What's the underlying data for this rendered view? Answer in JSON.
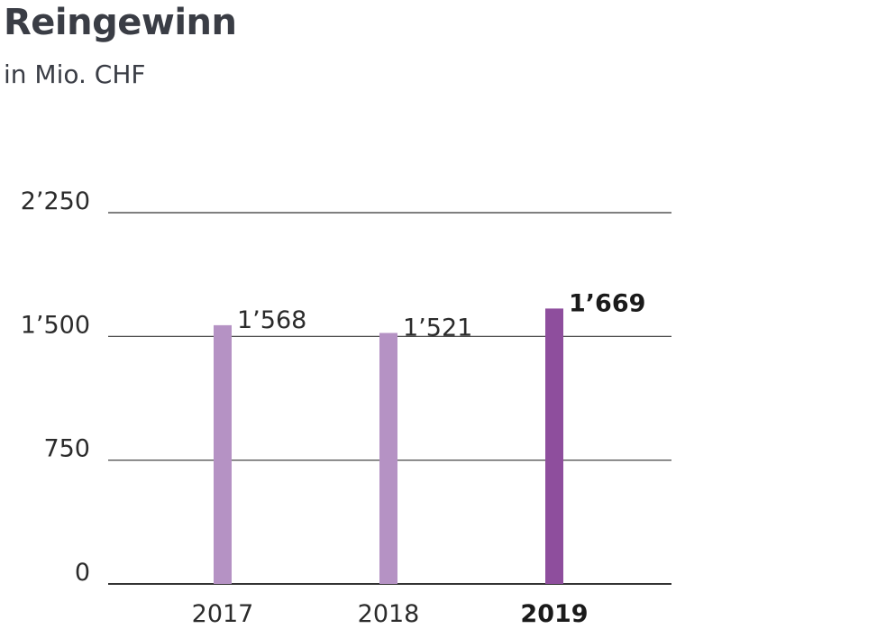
{
  "header": {
    "title": "Reingewinn",
    "subtitle": "in Mio. CHF"
  },
  "colors": {
    "bar_default": "#b592c4",
    "bar_highlight": "#8e4e9d",
    "gridline": "#333333",
    "text": "#2b2b2b"
  },
  "chart_data": {
    "type": "bar",
    "title": "Reingewinn",
    "subtitle": "in Mio. CHF",
    "categories": [
      "2017",
      "2018",
      "2019"
    ],
    "values": [
      1568,
      1521,
      1669
    ],
    "value_labels": [
      "1’568",
      "1’521",
      "1’669"
    ],
    "highlight_index": 2,
    "ylim": [
      0,
      2250
    ],
    "yticks": [
      0,
      750,
      1500,
      2250
    ],
    "ytick_labels": [
      "0",
      "750",
      "1’500",
      "2’250"
    ],
    "grid": true,
    "legend": false
  }
}
